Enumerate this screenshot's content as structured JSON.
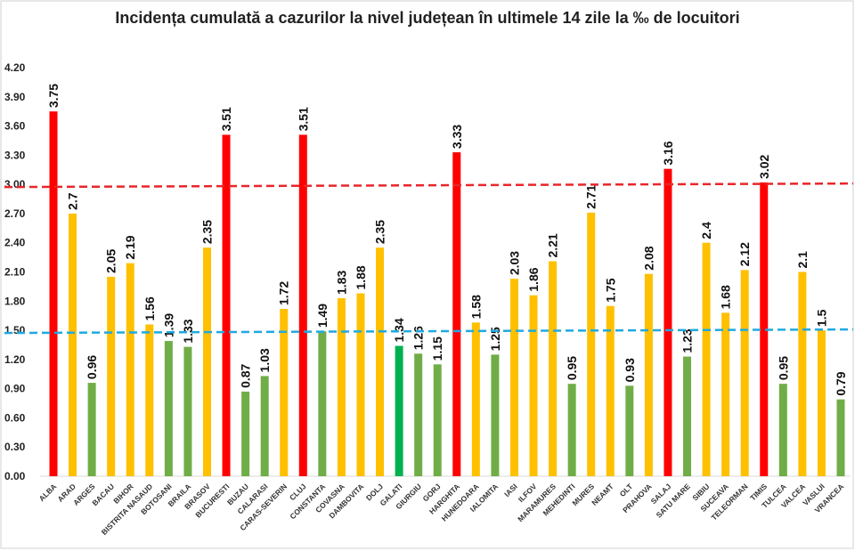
{
  "chart_data": {
    "type": "bar",
    "title": "Incidența cumulată a cazurilor la nivel județean în ultimele 14 zile la ‰ de locuitori",
    "xlabel": "",
    "ylabel": "",
    "ylim": [
      0,
      4.2
    ],
    "yticks": [
      "0.00",
      "0.30",
      "0.60",
      "0.90",
      "1.20",
      "1.50",
      "1.80",
      "2.10",
      "2.40",
      "2.70",
      "3.00",
      "3.30",
      "3.60",
      "3.90",
      "4.20"
    ],
    "grid": false,
    "categories": [
      "ALBA",
      "ARAD",
      "ARGES",
      "BACAU",
      "BIHOR",
      "BISTRITA NASAUD",
      "BOTOSANI",
      "BRAILA",
      "BRASOV",
      "BUCURESTI",
      "BUZAU",
      "CALARASI",
      "CARAS-SEVERIN",
      "CLUJ",
      "CONSTANTA",
      "COVASNA",
      "DAMBOVITA",
      "DOLJ",
      "GALATI",
      "GIURGIU",
      "GORJ",
      "HARGHITA",
      "HUNEDOARA",
      "IALOMITA",
      "IASI",
      "ILFOV",
      "MARAMURES",
      "MEHEDINTI",
      "MURES",
      "NEAMT",
      "OLT",
      "PRAHOVA",
      "SALAJ",
      "SATU MARE",
      "SIBIU",
      "SUCEAVA",
      "TELEORMAN",
      "TIMIS",
      "TULCEA",
      "VALCEA",
      "VASLUI",
      "VRANCEA"
    ],
    "values": [
      3.75,
      2.7,
      0.96,
      2.05,
      2.19,
      1.56,
      1.39,
      1.33,
      2.35,
      3.51,
      0.87,
      1.03,
      1.72,
      3.51,
      1.49,
      1.83,
      1.88,
      2.35,
      1.34,
      1.26,
      1.15,
      3.33,
      1.58,
      1.25,
      2.03,
      1.86,
      2.21,
      0.95,
      2.71,
      1.75,
      0.93,
      2.08,
      3.16,
      1.23,
      2.4,
      1.68,
      2.12,
      3.02,
      0.95,
      2.1,
      1.5,
      0.79
    ],
    "value_labels": [
      "3.75",
      "2.7",
      "0.96",
      "2.05",
      "2.19",
      "1.56",
      "1.39",
      "1.33",
      "2.35",
      "3.51",
      "0.87",
      "1.03",
      "1.72",
      "3.51",
      "1.49",
      "1.83",
      "1.88",
      "2.35",
      "1.34",
      "1.26",
      "1.15",
      "3.33",
      "1.58",
      "1.25",
      "2.03",
      "1.86",
      "2.21",
      "0.95",
      "2.71",
      "1.75",
      "0.93",
      "2.08",
      "3.16",
      "1.23",
      "2.4",
      "1.68",
      "2.12",
      "3.02",
      "0.95",
      "2.1",
      "1.5",
      "0.79"
    ],
    "bar_colors": [
      "red",
      "yellow",
      "green",
      "yellow",
      "yellow",
      "yellow",
      "green",
      "green",
      "yellow",
      "red",
      "green",
      "green",
      "yellow",
      "red",
      "green",
      "yellow",
      "yellow",
      "yellow",
      "bright-green",
      "green",
      "green",
      "red",
      "yellow",
      "green",
      "yellow",
      "yellow",
      "yellow",
      "green",
      "yellow",
      "yellow",
      "green",
      "yellow",
      "red",
      "green",
      "yellow",
      "yellow",
      "yellow",
      "red",
      "green",
      "yellow",
      "yellow",
      "green"
    ],
    "palette": {
      "red": "#ff0000",
      "yellow": "#ffc000",
      "green": "#70ad47",
      "bright-green": "#00b050"
    },
    "reference_lines": [
      {
        "value": 3.0,
        "color": "#e8262a",
        "style": "dashed"
      },
      {
        "value": 1.5,
        "color": "#1fa9e1",
        "style": "dashed"
      }
    ]
  }
}
